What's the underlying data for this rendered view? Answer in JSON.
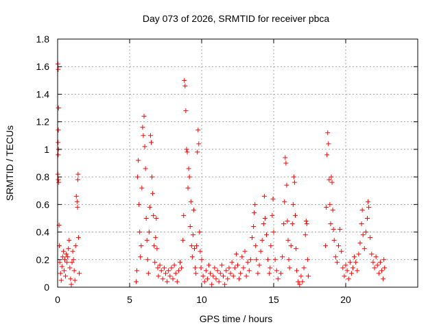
{
  "chart_data": {
    "type": "scatter",
    "title": "Day 073 of 2026, SRMTID for receiver pbca",
    "xlabel": "GPS time / hours",
    "ylabel": "SRMTID / TECUs",
    "xlim": [
      0,
      25
    ],
    "ylim": [
      0,
      1.8
    ],
    "grid": true,
    "marker": "+",
    "color": "#ff0000",
    "xticks": [
      0,
      5,
      10,
      15,
      20
    ],
    "xtick_labels": [
      "0",
      "5",
      "10",
      "15",
      "20"
    ],
    "yticks": [
      0,
      0.2,
      0.4,
      0.6,
      0.8,
      1,
      1.2,
      1.4,
      1.6,
      1.8
    ],
    "ytick_labels": [
      "0",
      "0.2",
      "0.4",
      "0.6",
      "0.8",
      "1",
      "1.2",
      "1.4",
      "1.6",
      "1.8"
    ],
    "series": [
      {
        "name": "SRMTID",
        "points": [
          [
            0.02,
            1.62
          ],
          [
            0.04,
            1.58
          ],
          [
            0.06,
            1.3
          ],
          [
            0.05,
            1.14
          ],
          [
            0.03,
            1.05
          ],
          [
            0.06,
            1.0
          ],
          [
            0.04,
            0.96
          ],
          [
            0.02,
            0.82
          ],
          [
            0.05,
            0.78
          ],
          [
            0.08,
            0.76
          ],
          [
            0.1,
            0.45
          ],
          [
            0.12,
            0.3
          ],
          [
            0.15,
            0.18
          ],
          [
            0.2,
            0.1
          ],
          [
            0.25,
            0.05
          ],
          [
            0.3,
            0.15
          ],
          [
            0.35,
            0.22
          ],
          [
            0.4,
            0.26
          ],
          [
            0.45,
            0.12
          ],
          [
            0.5,
            0.2
          ],
          [
            0.55,
            0.08
          ],
          [
            0.6,
            0.24
          ],
          [
            0.65,
            0.18
          ],
          [
            0.7,
            0.22
          ],
          [
            0.75,
            0.28
          ],
          [
            0.8,
            0.34
          ],
          [
            0.85,
            0.14
          ],
          [
            0.9,
            0.06
          ],
          [
            0.95,
            0.02
          ],
          [
            1.0,
            0.18
          ],
          [
            1.05,
            0.26
          ],
          [
            1.1,
            0.2
          ],
          [
            1.15,
            0.12
          ],
          [
            1.2,
            0.05
          ],
          [
            1.25,
            0.3
          ],
          [
            1.3,
            0.66
          ],
          [
            1.35,
            0.62
          ],
          [
            1.38,
            0.58
          ],
          [
            1.4,
            0.78
          ],
          [
            1.42,
            0.82
          ],
          [
            1.45,
            0.36
          ],
          [
            1.5,
            0.1
          ],
          [
            5.45,
            0.04
          ],
          [
            5.5,
            0.12
          ],
          [
            5.55,
            0.8
          ],
          [
            5.6,
            0.92
          ],
          [
            5.65,
            0.6
          ],
          [
            5.7,
            0.4
          ],
          [
            5.75,
            0.22
          ],
          [
            5.8,
            0.3
          ],
          [
            5.85,
            0.72
          ],
          [
            5.9,
            1.16
          ],
          [
            5.95,
            1.1
          ],
          [
            6.0,
            1.24
          ],
          [
            6.05,
            1.02
          ],
          [
            6.1,
            0.86
          ],
          [
            6.15,
            0.5
          ],
          [
            6.2,
            0.34
          ],
          [
            6.25,
            0.2
          ],
          [
            6.3,
            0.1
          ],
          [
            6.35,
            0.4
          ],
          [
            6.4,
            0.58
          ],
          [
            6.45,
            1.1
          ],
          [
            6.5,
            1.05
          ],
          [
            6.55,
            0.8
          ],
          [
            6.6,
            0.68
          ],
          [
            6.65,
            0.52
          ],
          [
            6.7,
            0.3
          ],
          [
            6.75,
            0.18
          ],
          [
            6.8,
            0.36
          ],
          [
            6.85,
            0.5
          ],
          [
            6.9,
            0.28
          ],
          [
            6.95,
            0.14
          ],
          [
            7.0,
            0.08
          ],
          [
            7.1,
            0.16
          ],
          [
            7.2,
            0.12
          ],
          [
            7.3,
            0.06
          ],
          [
            7.4,
            0.14
          ],
          [
            7.5,
            0.1
          ],
          [
            7.6,
            0.04
          ],
          [
            7.7,
            0.12
          ],
          [
            7.8,
            0.08
          ],
          [
            7.9,
            0.14
          ],
          [
            8.0,
            0.06
          ],
          [
            8.1,
            0.16
          ],
          [
            8.2,
            0.1
          ],
          [
            8.3,
            0.04
          ],
          [
            8.4,
            0.12
          ],
          [
            8.5,
            0.18
          ],
          [
            8.6,
            0.14
          ],
          [
            8.7,
            0.34
          ],
          [
            8.75,
            0.52
          ],
          [
            8.8,
            1.5
          ],
          [
            8.85,
            1.46
          ],
          [
            8.9,
            1.28
          ],
          [
            8.95,
            1.0
          ],
          [
            9.0,
            0.98
          ],
          [
            9.05,
            0.72
          ],
          [
            9.1,
            0.86
          ],
          [
            9.15,
            0.8
          ],
          [
            9.2,
            0.44
          ],
          [
            9.25,
            0.62
          ],
          [
            9.3,
            0.3
          ],
          [
            9.35,
            0.22
          ],
          [
            9.4,
            0.38
          ],
          [
            9.45,
            0.56
          ],
          [
            9.5,
            0.28
          ],
          [
            9.55,
            0.14
          ],
          [
            9.6,
            0.1
          ],
          [
            9.65,
            0.3
          ],
          [
            9.7,
            0.98
          ],
          [
            9.75,
            1.14
          ],
          [
            9.8,
            1.04
          ],
          [
            9.85,
            0.4
          ],
          [
            9.9,
            0.26
          ],
          [
            9.95,
            0.14
          ],
          [
            10.0,
            0.2
          ],
          [
            10.1,
            0.08
          ],
          [
            10.2,
            0.04
          ],
          [
            10.3,
            0.12
          ],
          [
            10.4,
            0.06
          ],
          [
            10.5,
            0.16
          ],
          [
            10.6,
            0.1
          ],
          [
            10.7,
            0.02
          ],
          [
            10.8,
            0.08
          ],
          [
            10.9,
            0.14
          ],
          [
            11.0,
            0.06
          ],
          [
            11.1,
            0.12
          ],
          [
            11.2,
            0.04
          ],
          [
            11.3,
            0.1
          ],
          [
            11.4,
            0.16
          ],
          [
            11.5,
            0.08
          ],
          [
            11.6,
            0.02
          ],
          [
            11.7,
            0.12
          ],
          [
            11.8,
            0.06
          ],
          [
            11.9,
            0.14
          ],
          [
            12.0,
            0.1
          ],
          [
            12.1,
            0.18
          ],
          [
            12.2,
            0.08
          ],
          [
            12.3,
            0.14
          ],
          [
            12.4,
            0.24
          ],
          [
            12.5,
            0.16
          ],
          [
            12.6,
            0.06
          ],
          [
            12.7,
            0.1
          ],
          [
            12.8,
            0.22
          ],
          [
            12.9,
            0.14
          ],
          [
            13.0,
            0.26
          ],
          [
            13.1,
            0.08
          ],
          [
            13.2,
            0.18
          ],
          [
            13.3,
            0.12
          ],
          [
            13.4,
            0.2
          ],
          [
            13.5,
            0.36
          ],
          [
            13.6,
            0.44
          ],
          [
            13.65,
            0.54
          ],
          [
            13.7,
            0.6
          ],
          [
            13.75,
            0.3
          ],
          [
            13.8,
            0.2
          ],
          [
            13.9,
            0.1
          ],
          [
            14.0,
            0.16
          ],
          [
            14.1,
            0.26
          ],
          [
            14.2,
            0.34
          ],
          [
            14.3,
            0.46
          ],
          [
            14.35,
            0.66
          ],
          [
            14.4,
            0.5
          ],
          [
            14.5,
            0.38
          ],
          [
            14.6,
            0.2
          ],
          [
            14.7,
            0.1
          ],
          [
            14.75,
            0.14
          ],
          [
            14.8,
            0.3
          ],
          [
            14.9,
            0.52
          ],
          [
            14.95,
            0.64
          ],
          [
            15.0,
            0.4
          ],
          [
            15.1,
            0.2
          ],
          [
            15.2,
            0.12
          ],
          [
            15.3,
            0.06
          ],
          [
            15.5,
            0.1
          ],
          [
            15.6,
            0.22
          ],
          [
            15.7,
            0.46
          ],
          [
            15.75,
            0.62
          ],
          [
            15.8,
            0.94
          ],
          [
            15.85,
            0.9
          ],
          [
            15.9,
            0.74
          ],
          [
            15.95,
            0.48
          ],
          [
            16.0,
            0.34
          ],
          [
            16.05,
            0.2
          ],
          [
            16.1,
            0.14
          ],
          [
            16.2,
            0.3
          ],
          [
            16.3,
            0.46
          ],
          [
            16.35,
            0.6
          ],
          [
            16.4,
            0.8
          ],
          [
            16.45,
            0.76
          ],
          [
            16.5,
            0.52
          ],
          [
            16.55,
            0.28
          ],
          [
            16.6,
            0.12
          ],
          [
            16.7,
            0.04
          ],
          [
            16.8,
            0.02
          ],
          [
            16.9,
            0.08
          ],
          [
            17.0,
            0.04
          ],
          [
            17.1,
            0.14
          ],
          [
            17.2,
            0.38
          ],
          [
            17.25,
            0.48
          ],
          [
            17.3,
            0.46
          ],
          [
            17.35,
            0.2
          ],
          [
            17.4,
            0.08
          ],
          [
            18.6,
            0.3
          ],
          [
            18.65,
            0.58
          ],
          [
            18.7,
            0.96
          ],
          [
            18.75,
            1.12
          ],
          [
            18.8,
            1.04
          ],
          [
            18.85,
            0.78
          ],
          [
            18.9,
            0.6
          ],
          [
            18.95,
            0.46
          ],
          [
            19.0,
            0.8
          ],
          [
            19.05,
            0.76
          ],
          [
            19.1,
            0.56
          ],
          [
            19.15,
            0.42
          ],
          [
            19.2,
            0.34
          ],
          [
            19.3,
            0.22
          ],
          [
            19.4,
            0.18
          ],
          [
            19.5,
            0.3
          ],
          [
            19.6,
            0.42
          ],
          [
            19.7,
            0.26
          ],
          [
            19.8,
            0.14
          ],
          [
            19.9,
            0.08
          ],
          [
            20.0,
            0.16
          ],
          [
            20.1,
            0.12
          ],
          [
            20.2,
            0.06
          ],
          [
            20.3,
            0.18
          ],
          [
            20.4,
            0.1
          ],
          [
            20.5,
            0.14
          ],
          [
            20.6,
            0.22
          ],
          [
            20.7,
            0.18
          ],
          [
            20.8,
            0.12
          ],
          [
            20.9,
            0.24
          ],
          [
            21.0,
            0.32
          ],
          [
            21.1,
            0.46
          ],
          [
            21.15,
            0.56
          ],
          [
            21.2,
            0.38
          ],
          [
            21.3,
            0.28
          ],
          [
            21.4,
            0.4
          ],
          [
            21.5,
            0.5
          ],
          [
            21.55,
            0.62
          ],
          [
            21.6,
            0.58
          ],
          [
            21.7,
            0.36
          ],
          [
            21.8,
            0.24
          ],
          [
            21.9,
            0.18
          ],
          [
            22.0,
            0.14
          ],
          [
            22.1,
            0.22
          ],
          [
            22.2,
            0.16
          ],
          [
            22.3,
            0.1
          ],
          [
            22.4,
            0.18
          ],
          [
            22.5,
            0.12
          ],
          [
            22.6,
            0.06
          ],
          [
            22.65,
            0.2
          ],
          [
            22.7,
            0.14
          ]
        ]
      }
    ]
  }
}
